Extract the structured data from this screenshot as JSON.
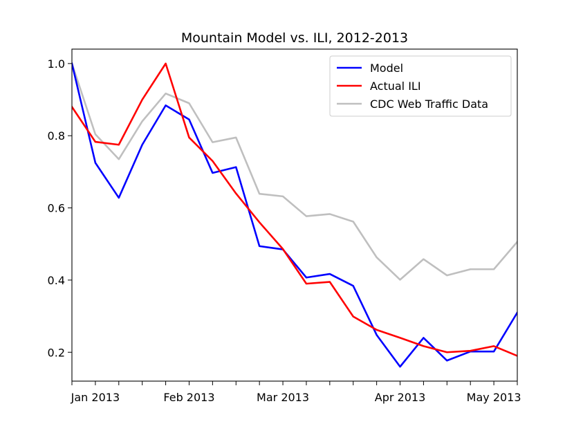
{
  "chart_data": {
    "type": "line",
    "title": "Mountain Model vs. ILI, 2012-2013",
    "xlabel": "",
    "ylabel": "",
    "x_points": 20,
    "xlim": [
      0,
      19
    ],
    "ylim": [
      0.12,
      1.04
    ],
    "grid": false,
    "legend_position": "top-right",
    "yticks": [
      0.2,
      0.4,
      0.6,
      0.8,
      1.0
    ],
    "ytick_labels": [
      "0.2",
      "0.4",
      "0.6",
      "0.8",
      "1.0"
    ],
    "xticks_minor": [
      0,
      1,
      2,
      3,
      4,
      5,
      6,
      7,
      8,
      9,
      10,
      11,
      12,
      13,
      14,
      15,
      16,
      17,
      18,
      19
    ],
    "xtick_labels": [
      {
        "index": 1,
        "label": "Jan 2013"
      },
      {
        "index": 5,
        "label": "Feb 2013"
      },
      {
        "index": 9,
        "label": "Mar 2013"
      },
      {
        "index": 14,
        "label": "Apr 2013"
      },
      {
        "index": 18,
        "label": "May 2013"
      }
    ],
    "series": [
      {
        "name": "Model",
        "color": "#0000ff",
        "values": [
          1.0,
          0.725,
          0.628,
          0.775,
          0.884,
          0.845,
          0.697,
          0.713,
          0.494,
          0.485,
          0.407,
          0.417,
          0.384,
          0.248,
          0.16,
          0.24,
          0.177,
          0.202,
          0.202,
          0.31
        ]
      },
      {
        "name": "Actual ILI",
        "color": "#ff0000",
        "values": [
          0.88,
          0.783,
          0.775,
          0.9,
          1.0,
          0.795,
          0.73,
          0.64,
          0.56,
          0.486,
          0.39,
          0.395,
          0.299,
          0.262,
          0.24,
          0.217,
          0.2,
          0.204,
          0.217,
          0.19
        ]
      },
      {
        "name": "CDC Web Traffic Data",
        "color": "#bfbfbf",
        "values": [
          1.0,
          0.804,
          0.735,
          0.84,
          0.917,
          0.89,
          0.782,
          0.795,
          0.639,
          0.632,
          0.577,
          0.583,
          0.562,
          0.463,
          0.401,
          0.458,
          0.413,
          0.43,
          0.43,
          0.506
        ]
      }
    ]
  }
}
